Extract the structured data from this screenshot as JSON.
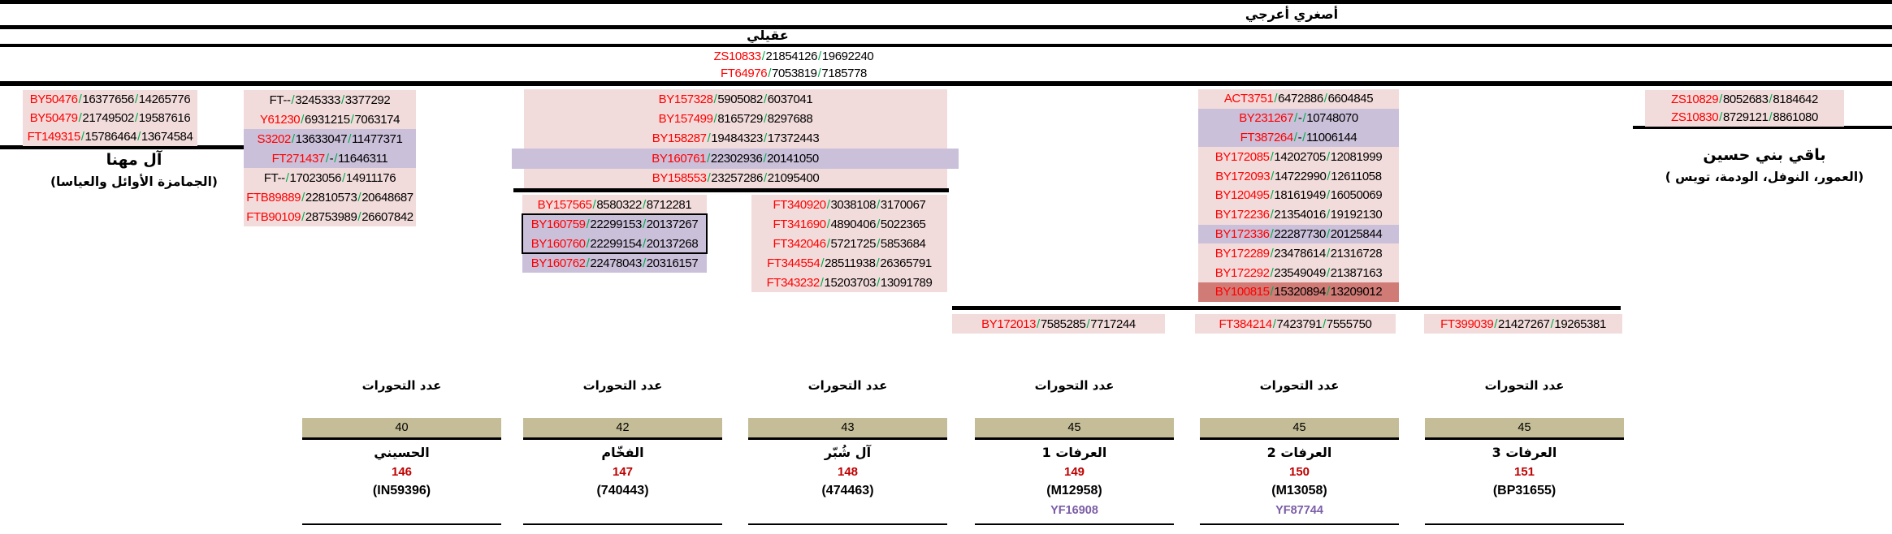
{
  "header": {
    "top_label": "أصغري أعرجي",
    "mid_label": "عقيلي",
    "band": [
      {
        "id": "ZS10833",
        "v1": "21854126",
        "v2": "19692240"
      },
      {
        "id": "FT64976",
        "v1": "7053819",
        "v2": "7185778"
      }
    ]
  },
  "blocks": {
    "mahanna": {
      "rows": [
        {
          "id": "BY50476",
          "v1": "16377656",
          "v2": "14265776",
          "bg": "pink"
        },
        {
          "id": "BY50479",
          "v1": "21749502",
          "v2": "19587616",
          "bg": "pink"
        },
        {
          "id": "FT149315",
          "v1": "15786464",
          "v2": "13674584",
          "bg": "pink"
        }
      ],
      "caption_title": "آل مهنا",
      "caption_subtitle": "(الجمامزة الأوائل والعياسا)"
    },
    "colA": {
      "rows": [
        {
          "id": "FT--",
          "v1": "3245333",
          "v2": "3377292",
          "bg": "pink",
          "idc": "black"
        },
        {
          "id": "Y61230",
          "v1": "6931215",
          "v2": "7063174",
          "bg": "pink"
        },
        {
          "id": "S3202",
          "v1": "13633047",
          "v2": "11477371",
          "bg": "purple"
        },
        {
          "id": "FT271437",
          "v1": "-",
          "v2": "11646311",
          "bg": "purple"
        },
        {
          "id": "FT--",
          "v1": "17023056",
          "v2": "14911176",
          "bg": "pink",
          "idc": "black"
        },
        {
          "id": "FTB89889",
          "v1": "22810573",
          "v2": "20648687",
          "bg": "pink"
        },
        {
          "id": "FTB90109",
          "v1": "28753989",
          "v2": "26607842",
          "bg": "pink"
        }
      ]
    },
    "mid": {
      "rows": [
        {
          "id": "BY157328",
          "v1": "5905082",
          "v2": "6037041",
          "bg": "pink"
        },
        {
          "id": "BY157499",
          "v1": "8165729",
          "v2": "8297688",
          "bg": "pink"
        },
        {
          "id": "BY158287",
          "v1": "19484323",
          "v2": "17372443",
          "bg": "pink"
        },
        {
          "id": "BY160761",
          "v1": "22302936",
          "v2": "20141050",
          "bg": "purple",
          "wide": true
        },
        {
          "id": "BY158553",
          "v1": "23257286",
          "v2": "21095400",
          "bg": "pink"
        }
      ]
    },
    "midLeft": {
      "rows": [
        {
          "id": "BY157565",
          "v1": "8580322",
          "v2": "8712281",
          "bg": "pink"
        },
        {
          "id": "BY160759",
          "v1": "22299153",
          "v2": "20137267",
          "bg": "purple"
        },
        {
          "id": "BY160760",
          "v1": "22299154",
          "v2": "20137268",
          "bg": "purple"
        },
        {
          "id": "BY160762",
          "v1": "22478043",
          "v2": "20316157",
          "bg": "purple"
        }
      ]
    },
    "midRight": {
      "rows": [
        {
          "id": "FT340920",
          "v1": "3038108",
          "v2": "3170067",
          "bg": "pink"
        },
        {
          "id": "FT341690",
          "v1": "4890406",
          "v2": "5022365",
          "bg": "pink"
        },
        {
          "id": "FT342046",
          "v1": "5721725",
          "v2": "5853684",
          "bg": "pink"
        },
        {
          "id": "FT344554",
          "v1": "28511938",
          "v2": "26365791",
          "bg": "pink"
        },
        {
          "id": "FT343232",
          "v1": "15203703",
          "v2": "13091789",
          "bg": "pink"
        }
      ]
    },
    "act": {
      "rows": [
        {
          "id": "ACT3751",
          "v1": "6472886",
          "v2": "6604845",
          "bg": "pink"
        },
        {
          "id": "BY231267",
          "v1": "-",
          "v2": "10748070",
          "bg": "purple"
        },
        {
          "id": "FT387264",
          "v1": "-",
          "v2": "11006144",
          "bg": "purple"
        },
        {
          "id": "BY172085",
          "v1": "14202705",
          "v2": "12081999",
          "bg": "pink"
        },
        {
          "id": "BY172093",
          "v1": "14722990",
          "v2": "12611058",
          "bg": "pink"
        },
        {
          "id": "BY120495",
          "v1": "18161949",
          "v2": "16050069",
          "bg": "pink"
        },
        {
          "id": "BY172236",
          "v1": "21354016",
          "v2": "19192130",
          "bg": "pink"
        },
        {
          "id": "BY172336",
          "v1": "22287730",
          "v2": "20125844",
          "bg": "purple"
        },
        {
          "id": "BY172289",
          "v1": "23478614",
          "v2": "21316728",
          "bg": "pink"
        },
        {
          "id": "BY172292",
          "v1": "23549049",
          "v2": "21387163",
          "bg": "pink"
        },
        {
          "id": "BY100815",
          "v1": "15320894",
          "v2": "13209012",
          "bg": "red"
        }
      ]
    },
    "right": {
      "rows": [
        {
          "id": "ZS10829",
          "v1": "8052683",
          "v2": "8184642",
          "bg": "pink"
        },
        {
          "id": "ZS10830",
          "v1": "8729121",
          "v2": "8861080",
          "bg": "pink"
        }
      ],
      "caption_title": "باقي بني حسين",
      "caption_subtitle": "(العمور، النوفل، الودمة، تويس )"
    },
    "single1": {
      "rows": [
        {
          "id": "BY172013",
          "v1": "7585285",
          "v2": "7717244",
          "bg": "pink"
        }
      ]
    },
    "single2": {
      "rows": [
        {
          "id": "FT384214",
          "v1": "7423791",
          "v2": "7555750",
          "bg": "pink"
        }
      ]
    },
    "single3": {
      "rows": [
        {
          "id": "FT399039",
          "v1": "21427267",
          "v2": "19265381",
          "bg": "pink"
        }
      ]
    }
  },
  "bottom": {
    "mut_label": "عدد التحورات",
    "columns": [
      {
        "count": "40",
        "name": "الحسيني",
        "num": "146",
        "kit": "(IN59396)",
        "yf": ""
      },
      {
        "count": "42",
        "name": "الفخّام",
        "num": "147",
        "kit": "(740443)",
        "yf": ""
      },
      {
        "count": "43",
        "name": "آل شُبّر",
        "num": "148",
        "kit": "(474463)",
        "yf": ""
      },
      {
        "count": "45",
        "name": "العرفات 1",
        "num": "149",
        "kit": "(M12958)",
        "yf": "YF16908"
      },
      {
        "count": "45",
        "name": "العرفات 2",
        "num": "150",
        "kit": "(M13058)",
        "yf": "YF87744"
      },
      {
        "count": "45",
        "name": "العرفات 3",
        "num": "151",
        "kit": "(BP31655)",
        "yf": ""
      }
    ]
  },
  "colors": {
    "snp_id_red": "#FF0000",
    "slash_green": "#00B050",
    "pink_bg": "#F2DCDB",
    "purple_bg": "#CBC0DA",
    "highlight_bg": "#D07B76",
    "tan_box": "#C4BD97",
    "count_dark_red": "#C00000",
    "yf_purple": "#7B5EA7"
  }
}
